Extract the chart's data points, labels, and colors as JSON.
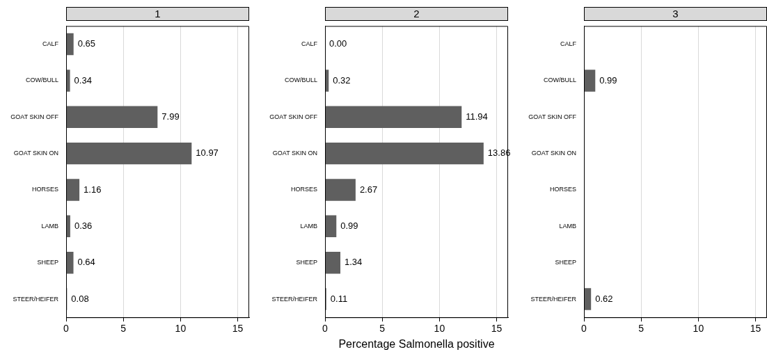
{
  "chart_data": [
    {
      "type": "bar",
      "orientation": "horizontal",
      "title": "1",
      "categories": [
        "CALF",
        "COW/BULL",
        "GOAT SKIN OFF",
        "GOAT SKIN ON",
        "HORSES",
        "LAMB",
        "SHEEP",
        "STEER/HEIFER"
      ],
      "values": [
        0.65,
        0.34,
        7.99,
        10.97,
        1.16,
        0.36,
        0.64,
        0.08
      ],
      "color": "#5f5f5f",
      "data_labels": true,
      "xlim": [
        0,
        16
      ],
      "xticks": [
        0,
        5,
        10,
        15
      ],
      "grid": "x"
    },
    {
      "type": "bar",
      "orientation": "horizontal",
      "title": "2",
      "xlabel": "Percentage Salmonella positive",
      "categories": [
        "CALF",
        "COW/BULL",
        "GOAT SKIN OFF",
        "GOAT SKIN ON",
        "HORSES",
        "LAMB",
        "SHEEP",
        "STEER/HEIFER"
      ],
      "values": [
        0.0,
        0.32,
        11.94,
        13.86,
        2.67,
        0.99,
        1.34,
        0.11
      ],
      "value_labels": [
        "0.00",
        "0.32",
        "11.94",
        "13.86",
        "2.67",
        "0.99",
        "1.34",
        "0.11"
      ],
      "color": "#5f5f5f",
      "xlim": [
        0,
        16
      ],
      "xticks": [
        0,
        5,
        10,
        15
      ],
      "grid": "x"
    },
    {
      "type": "bar",
      "orientation": "horizontal",
      "title": "3",
      "categories": [
        "CALF",
        "COW/BULL",
        "GOAT SKIN OFF",
        "GOAT SKIN ON",
        "HORSES",
        "LAMB",
        "SHEEP",
        "STEER/HEIFER"
      ],
      "values": [
        null,
        0.99,
        null,
        null,
        null,
        null,
        null,
        0.62
      ],
      "color": "#5f5f5f",
      "data_labels": true,
      "xlim": [
        0,
        16
      ],
      "xticks": [
        0,
        5,
        10,
        15
      ],
      "grid": "x"
    }
  ]
}
